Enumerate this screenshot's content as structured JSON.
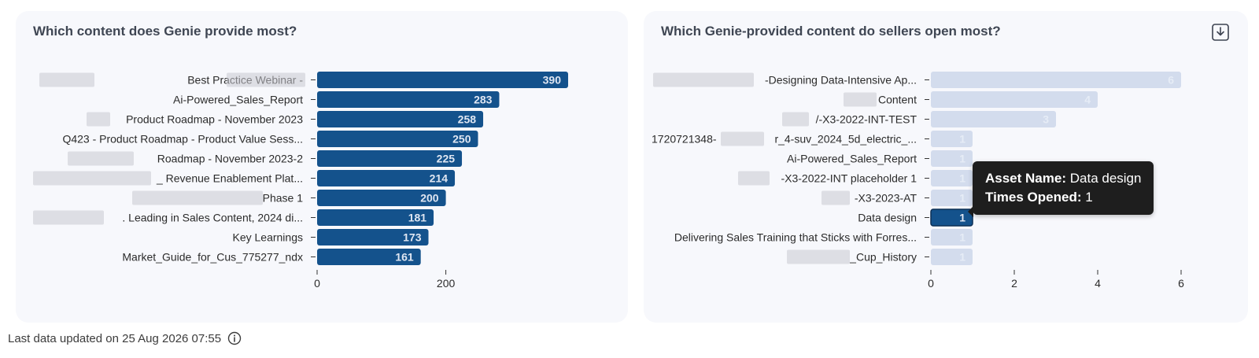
{
  "left_chart": {
    "title": "Which content does Genie provide most?"
  },
  "right_chart": {
    "title": "Which Genie-provided content do sellers open most?",
    "download_icon": "download-icon"
  },
  "tooltip": {
    "asset_label": "Asset Name:",
    "asset_value": "Data design",
    "opened_label": "Times Opened:",
    "opened_value": "1"
  },
  "footer": {
    "text": "Last data updated on 25 Aug 2026 07:55",
    "icon": "info-icon"
  },
  "colors": {
    "bar_primary": "#14528c",
    "bar_muted": "#d3dced",
    "bar_highlight": "#14528c",
    "redaction": "#c9c9cf"
  },
  "chart_data": [
    {
      "type": "bar",
      "orientation": "horizontal",
      "title": "Which content does Genie provide most?",
      "categories": [
        "Best Practice Webinar -",
        "Ai-Powered_Sales_Report",
        "Product Roadmap - November 2023",
        "Q423 - Product Roadmap - Product Value Sess...",
        "Roadmap - November 2023-2",
        "_ Revenue Enablement Plat...",
        "Phase 1",
        ". Leading in Sales Content, 2024 di...",
        "Key Learnings",
        "Market_Guide_for_Cus_775277_ndx"
      ],
      "values": [
        390,
        283,
        258,
        250,
        225,
        214,
        200,
        181,
        173,
        161
      ],
      "data_labels": [
        "390",
        "283",
        "258",
        "250",
        "225",
        "214",
        "200",
        "181",
        "173",
        "161"
      ],
      "xlim": [
        0,
        390
      ],
      "xticks": [
        "0",
        "200"
      ],
      "grid": false
    },
    {
      "type": "bar",
      "orientation": "horizontal",
      "title": "Which Genie-provided content do sellers open most?",
      "categories": [
        "-Designing Data-Intensive Ap...",
        "Content",
        "/-X3-2022-INT-TEST",
        "1720721348-",
        "Ai-Powered_Sales_Report",
        "-X3-2022-INT placeholder 1",
        "-X3-2023-AT",
        "Data design",
        "Delivering Sales Training that Sticks with Forres...",
        "_Cup_History"
      ],
      "category_suffix_3": "r_4-suv_2024_5d_electric_...",
      "values": [
        6,
        4,
        3,
        1,
        1,
        1,
        1,
        1,
        1,
        1
      ],
      "data_labels": [
        "6",
        "4",
        "3",
        "1",
        "1",
        "1",
        "1",
        "1",
        "1",
        "1"
      ],
      "highlighted_index": 7,
      "xlim": [
        0,
        6
      ],
      "xticks": [
        "0",
        "2",
        "4",
        "6"
      ],
      "grid": false
    }
  ]
}
